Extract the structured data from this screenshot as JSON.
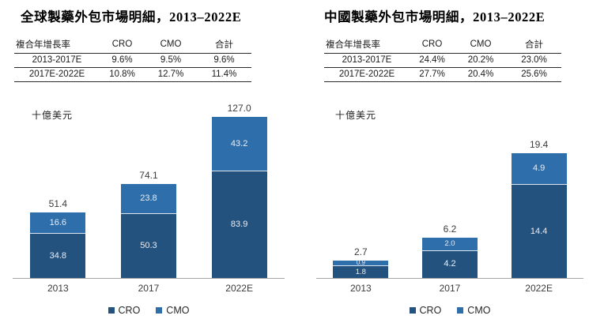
{
  "panels": [
    {
      "title": "全球製藥外包市場明細，2013–2022E",
      "unit_label": "十億美元",
      "table": {
        "headers": [
          "複合年增長率",
          "CRO",
          "CMO",
          "合計"
        ],
        "rows": [
          [
            "2013-2017E",
            "9.6%",
            "9.5%",
            "9.6%"
          ],
          [
            "2017E-2022E",
            "10.8%",
            "12.7%",
            "11.4%"
          ]
        ]
      }
    },
    {
      "title": "中國製藥外包市場明細，2013–2022E",
      "unit_label": "十億美元",
      "table": {
        "headers": [
          "複合年增長率",
          "CRO",
          "CMO",
          "合計"
        ],
        "rows": [
          [
            "2013-2017E",
            "24.4%",
            "20.2%",
            "23.0%"
          ],
          [
            "2017E-2022E",
            "27.7%",
            "20.4%",
            "25.6%"
          ]
        ]
      }
    }
  ],
  "chart_data": [
    {
      "type": "bar",
      "stacked": true,
      "title": "全球製藥外包市場明細，2013–2022E",
      "ylabel": "十億美元",
      "xlabel": "",
      "categories": [
        "2013",
        "2017",
        "2022E"
      ],
      "series": [
        {
          "name": "CRO",
          "color": "#24527E",
          "values": [
            34.8,
            50.3,
            83.9
          ]
        },
        {
          "name": "CMO",
          "color": "#2D6EAB",
          "values": [
            16.6,
            23.8,
            43.2
          ]
        }
      ],
      "totals": [
        51.4,
        74.1,
        127.0
      ],
      "ylim": [
        0,
        140
      ],
      "grid": false,
      "legend_position": "bottom"
    },
    {
      "type": "bar",
      "stacked": true,
      "title": "中國製藥外包市場明細，2013–2022E",
      "ylabel": "十億美元",
      "xlabel": "",
      "categories": [
        "2013",
        "2017",
        "2022E"
      ],
      "series": [
        {
          "name": "CRO",
          "color": "#24527E",
          "values": [
            1.8,
            4.2,
            14.4
          ]
        },
        {
          "name": "CMO",
          "color": "#2D6EAB",
          "values": [
            0.9,
            2.0,
            4.9
          ]
        }
      ],
      "totals": [
        2.7,
        6.2,
        19.4
      ],
      "ylim": [
        0,
        27.5
      ],
      "grid": false,
      "legend_position": "bottom"
    }
  ],
  "colors": {
    "cro": "#24527E",
    "cmo": "#2D6EAB",
    "segment_separator": "#dde6f0",
    "axis_line": "#a6a6a6",
    "table_rule": "#2b2b2b",
    "bar_value_text": "#e9eef6",
    "label_text": "#3b3b3b"
  }
}
